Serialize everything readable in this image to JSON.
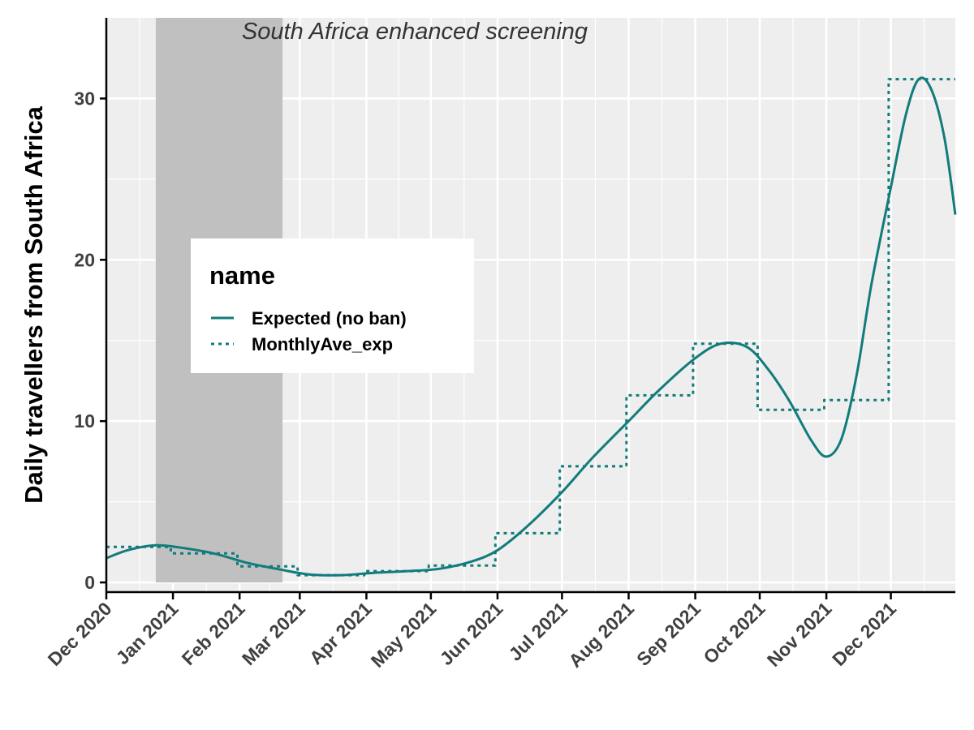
{
  "chart_data": {
    "type": "line",
    "title": "",
    "xlabel": "",
    "ylabel": "Daily travellers from South Africa",
    "x_ticks": [
      "Dec 2020",
      "Jan 2021",
      "Feb 2021",
      "Mar 2021",
      "Apr 2021",
      "May 2021",
      "Jun 2021",
      "Jul 2021",
      "Aug 2021",
      "Sep 2021",
      "Oct 2021",
      "Nov 2021",
      "Dec 2021"
    ],
    "y_ticks": [
      "0",
      "10",
      "20",
      "30"
    ],
    "xlim": [
      "2020-12-01",
      "2021-12-31"
    ],
    "ylim": [
      -0.6,
      35
    ],
    "grid": true,
    "annotation": {
      "text": "South Africa enhanced screening",
      "shaded_range": [
        "2020-12-24",
        "2021-02-21"
      ]
    },
    "legend": {
      "title": "name",
      "position": "upper-left-inside",
      "entries": [
        {
          "label": "Expected (no ban)",
          "style": "solid"
        },
        {
          "label": "MonthlyAve_exp",
          "style": "dotted"
        }
      ]
    },
    "series": [
      {
        "name": "Expected (no ban)",
        "style": "solid",
        "color": "#127B7B",
        "points": [
          [
            "2020-12-01",
            1.5
          ],
          [
            "2020-12-11",
            2.0
          ],
          [
            "2020-12-24",
            2.3
          ],
          [
            "2021-01-05",
            2.15
          ],
          [
            "2021-01-20",
            1.8
          ],
          [
            "2021-02-05",
            1.2
          ],
          [
            "2021-02-20",
            0.8
          ],
          [
            "2021-03-05",
            0.5
          ],
          [
            "2021-03-20",
            0.45
          ],
          [
            "2021-04-05",
            0.6
          ],
          [
            "2021-04-20",
            0.7
          ],
          [
            "2021-05-05",
            0.85
          ],
          [
            "2021-05-20",
            1.3
          ],
          [
            "2021-06-01",
            2.0
          ],
          [
            "2021-06-15",
            3.5
          ],
          [
            "2021-07-01",
            5.6
          ],
          [
            "2021-07-15",
            7.7
          ],
          [
            "2021-08-01",
            10.0
          ],
          [
            "2021-08-15",
            11.9
          ],
          [
            "2021-09-01",
            13.9
          ],
          [
            "2021-09-13",
            14.8
          ],
          [
            "2021-09-25",
            14.6
          ],
          [
            "2021-10-05",
            13.2
          ],
          [
            "2021-10-15",
            11.2
          ],
          [
            "2021-10-25",
            8.8
          ],
          [
            "2021-11-01",
            7.8
          ],
          [
            "2021-11-08",
            8.9
          ],
          [
            "2021-11-15",
            12.8
          ],
          [
            "2021-11-22",
            18.5
          ],
          [
            "2021-12-01",
            24.5
          ],
          [
            "2021-12-08",
            29.0
          ],
          [
            "2021-12-14",
            31.2
          ],
          [
            "2021-12-20",
            30.5
          ],
          [
            "2021-12-26",
            27.5
          ],
          [
            "2021-12-31",
            22.8
          ]
        ]
      },
      {
        "name": "MonthlyAve_exp",
        "style": "dotted",
        "color": "#127B7B",
        "points": [
          [
            "2020-12-01",
            2.2
          ],
          [
            "2020-12-31",
            2.2
          ],
          [
            "2020-12-31",
            1.8
          ],
          [
            "2021-01-31",
            1.8
          ],
          [
            "2021-01-31",
            1.0
          ],
          [
            "2021-02-28",
            1.0
          ],
          [
            "2021-02-28",
            0.45
          ],
          [
            "2021-03-31",
            0.45
          ],
          [
            "2021-03-31",
            0.7
          ],
          [
            "2021-04-30",
            0.7
          ],
          [
            "2021-04-30",
            1.05
          ],
          [
            "2021-05-31",
            1.05
          ],
          [
            "2021-05-31",
            3.05
          ],
          [
            "2021-06-30",
            3.05
          ],
          [
            "2021-06-30",
            7.2
          ],
          [
            "2021-07-31",
            7.2
          ],
          [
            "2021-07-31",
            11.6
          ],
          [
            "2021-08-31",
            11.6
          ],
          [
            "2021-08-31",
            14.8
          ],
          [
            "2021-09-30",
            14.8
          ],
          [
            "2021-09-30",
            10.7
          ],
          [
            "2021-10-31",
            10.7
          ],
          [
            "2021-10-31",
            11.3
          ],
          [
            "2021-11-30",
            11.3
          ],
          [
            "2021-11-30",
            31.2
          ],
          [
            "2021-12-31",
            31.2
          ]
        ]
      }
    ]
  },
  "colors": {
    "panel_bg": "#EEEEEE",
    "grid": "#FFFFFF",
    "shade": "#C0C0C0",
    "series": "#127B7B",
    "axis": "#000000"
  }
}
